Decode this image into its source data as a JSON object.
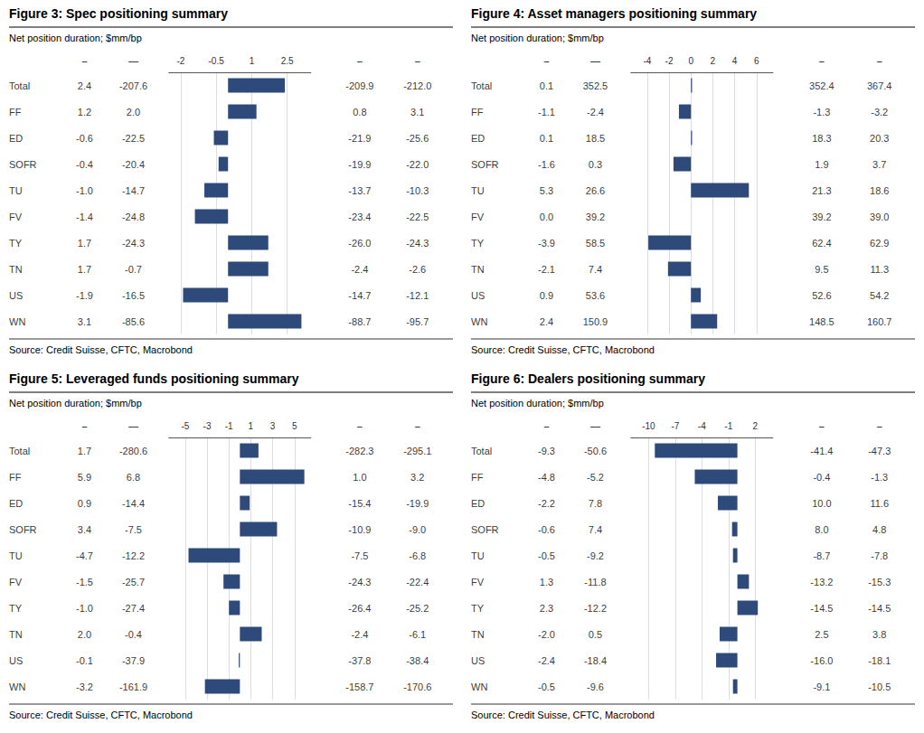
{
  "chart_data": [
    {
      "type": "bar",
      "orientation": "horizontal",
      "grid": true,
      "color": "#2E4A7A",
      "title": "Figure 3: Spec positioning summary",
      "subtitle": "Net position duration; $mm/bp",
      "source": "Source: Credit Suisse, CFTC, Macrobond",
      "categories": [
        "Total",
        "FF",
        "ED",
        "SOFR",
        "TU",
        "FV",
        "TY",
        "TN",
        "US",
        "WN"
      ],
      "values": [
        2.4,
        1.2,
        -0.6,
        -0.4,
        -1.0,
        -1.4,
        1.7,
        1.7,
        -1.9,
        3.1
      ],
      "xlim": [
        -2.5,
        3.5
      ],
      "xticks": [
        -2,
        -0.5,
        1,
        2.5
      ],
      "columns": [
        {
          "header": "–",
          "values": [
            2.4,
            1.2,
            -0.6,
            -0.4,
            -1.0,
            -1.4,
            1.7,
            1.7,
            -1.9,
            3.1
          ],
          "value_labels": [
            "2.4",
            "1.2",
            "-0.6",
            "-0.4",
            "-1.0",
            "-1.4",
            "1.7",
            "1.7",
            "-1.9",
            "3.1"
          ]
        },
        {
          "header": "––",
          "values": [
            -207.6,
            2.0,
            -22.5,
            -20.4,
            -14.7,
            -24.8,
            -24.3,
            -0.7,
            -16.5,
            -85.6
          ],
          "value_labels": [
            "-207.6",
            "2.0",
            "-22.5",
            "-20.4",
            "-14.7",
            "-24.8",
            "-24.3",
            "-0.7",
            "-16.5",
            "-85.6"
          ]
        },
        {
          "header": "–",
          "values": [
            -209.9,
            0.8,
            -21.9,
            -19.9,
            -13.7,
            -23.4,
            -26.0,
            -2.4,
            -14.7,
            -88.7
          ],
          "value_labels": [
            "-209.9",
            "0.8",
            "-21.9",
            "-19.9",
            "-13.7",
            "-23.4",
            "-26.0",
            "-2.4",
            "-14.7",
            "-88.7"
          ]
        },
        {
          "header": "–",
          "values": [
            -212.0,
            3.1,
            -25.6,
            -22.0,
            -10.3,
            -22.5,
            -24.3,
            -2.6,
            -12.1,
            -95.7
          ],
          "value_labels": [
            "-212.0",
            "3.1",
            "-25.6",
            "-22.0",
            "-10.3",
            "-22.5",
            "-24.3",
            "-2.6",
            "-12.1",
            "-95.7"
          ]
        }
      ]
    },
    {
      "type": "bar",
      "orientation": "horizontal",
      "grid": true,
      "color": "#2E4A7A",
      "title": "Figure 4: Asset managers positioning summary",
      "subtitle": "Net position duration; $mm/bp",
      "source": "Source: Credit Suisse, CFTC, Macrobond",
      "categories": [
        "Total",
        "FF",
        "ED",
        "SOFR",
        "TU",
        "FV",
        "TY",
        "TN",
        "US",
        "WN"
      ],
      "values": [
        0.1,
        -1.1,
        0.1,
        -1.6,
        5.3,
        0.0,
        -3.9,
        -2.1,
        0.9,
        2.4
      ],
      "xlim": [
        -5.5,
        7.5
      ],
      "xticks": [
        -4,
        -2,
        0,
        2,
        4,
        6
      ],
      "columns": [
        {
          "header": "–",
          "values": [
            0.1,
            -1.1,
            0.1,
            -1.6,
            5.3,
            0.0,
            -3.9,
            -2.1,
            0.9,
            2.4
          ],
          "value_labels": [
            "0.1",
            "-1.1",
            "0.1",
            "-1.6",
            "5.3",
            "0.0",
            "-3.9",
            "-2.1",
            "0.9",
            "2.4"
          ]
        },
        {
          "header": "––",
          "values": [
            352.5,
            -2.4,
            18.5,
            0.3,
            26.6,
            39.2,
            58.5,
            7.4,
            53.6,
            150.9
          ],
          "value_labels": [
            "352.5",
            "-2.4",
            "18.5",
            "0.3",
            "26.6",
            "39.2",
            "58.5",
            "7.4",
            "53.6",
            "150.9"
          ]
        },
        {
          "header": "–",
          "values": [
            352.4,
            -1.3,
            18.3,
            1.9,
            21.3,
            39.2,
            62.4,
            9.5,
            52.6,
            148.5
          ],
          "value_labels": [
            "352.4",
            "-1.3",
            "18.3",
            "1.9",
            "21.3",
            "39.2",
            "62.4",
            "9.5",
            "52.6",
            "148.5"
          ]
        },
        {
          "header": "–",
          "values": [
            367.4,
            -3.2,
            20.3,
            3.7,
            18.6,
            39.0,
            62.9,
            11.3,
            54.2,
            160.7
          ],
          "value_labels": [
            "367.4",
            "-3.2",
            "20.3",
            "3.7",
            "18.6",
            "39.0",
            "62.9",
            "11.3",
            "54.2",
            "160.7"
          ]
        }
      ]
    },
    {
      "type": "bar",
      "orientation": "horizontal",
      "grid": true,
      "color": "#2E4A7A",
      "title": "Figure 5: Leveraged funds positioning summary",
      "subtitle": "Net position duration; $mm/bp",
      "source": "Source: Credit Suisse, CFTC, Macrobond",
      "categories": [
        "Total",
        "FF",
        "ED",
        "SOFR",
        "TU",
        "FV",
        "TY",
        "TN",
        "US",
        "WN"
      ],
      "values": [
        1.7,
        5.9,
        0.9,
        3.4,
        -4.7,
        -1.5,
        -1.0,
        2.0,
        -0.1,
        -3.2
      ],
      "xlim": [
        -6.5,
        6.5
      ],
      "xticks": [
        -5,
        -3,
        -1,
        1,
        3,
        5
      ],
      "columns": [
        {
          "header": "–",
          "values": [
            1.7,
            5.9,
            0.9,
            3.4,
            -4.7,
            -1.5,
            -1.0,
            2.0,
            -0.1,
            -3.2
          ],
          "value_labels": [
            "1.7",
            "5.9",
            "0.9",
            "3.4",
            "-4.7",
            "-1.5",
            "-1.0",
            "2.0",
            "-0.1",
            "-3.2"
          ]
        },
        {
          "header": "––",
          "values": [
            -280.6,
            6.8,
            -14.4,
            -7.5,
            -12.2,
            -25.7,
            -27.4,
            -0.4,
            -37.9,
            -161.9
          ],
          "value_labels": [
            "-280.6",
            "6.8",
            "-14.4",
            "-7.5",
            "-12.2",
            "-25.7",
            "-27.4",
            "-0.4",
            "-37.9",
            "-161.9"
          ]
        },
        {
          "header": "–",
          "values": [
            -282.3,
            1.0,
            -15.4,
            -10.9,
            -7.5,
            -24.3,
            -26.4,
            -2.4,
            -37.8,
            -158.7
          ],
          "value_labels": [
            "-282.3",
            "1.0",
            "-15.4",
            "-10.9",
            "-7.5",
            "-24.3",
            "-26.4",
            "-2.4",
            "-37.8",
            "-158.7"
          ]
        },
        {
          "header": "–",
          "values": [
            -295.1,
            3.2,
            -19.9,
            -9.0,
            -6.8,
            -22.4,
            -25.2,
            -6.1,
            -38.4,
            -170.6
          ],
          "value_labels": [
            "-295.1",
            "3.2",
            "-19.9",
            "-9.0",
            "-6.8",
            "-22.4",
            "-25.2",
            "-6.1",
            "-38.4",
            "-170.6"
          ]
        }
      ]
    },
    {
      "type": "bar",
      "orientation": "horizontal",
      "grid": true,
      "color": "#2E4A7A",
      "title": "Figure 6: Dealers positioning summary",
      "subtitle": "Net position duration; $mm/bp",
      "source": "Source: Credit Suisse, CFTC, Macrobond",
      "categories": [
        "Total",
        "FF",
        "ED",
        "SOFR",
        "TU",
        "FV",
        "TY",
        "TN",
        "US",
        "WN"
      ],
      "values": [
        -9.3,
        -4.8,
        -2.2,
        -0.6,
        -0.5,
        1.3,
        2.3,
        -2.0,
        -2.4,
        -0.5
      ],
      "xlim": [
        -12.0,
        4.0
      ],
      "xticks": [
        -10,
        -7,
        -4,
        -1,
        2
      ],
      "columns": [
        {
          "header": "–",
          "values": [
            -9.3,
            -4.8,
            -2.2,
            -0.6,
            -0.5,
            1.3,
            2.3,
            -2.0,
            -2.4,
            -0.5
          ],
          "value_labels": [
            "-9.3",
            "-4.8",
            "-2.2",
            "-0.6",
            "-0.5",
            "1.3",
            "2.3",
            "-2.0",
            "-2.4",
            "-0.5"
          ]
        },
        {
          "header": "––",
          "values": [
            -50.6,
            -5.2,
            7.8,
            7.4,
            -9.2,
            -11.8,
            -12.2,
            0.5,
            -18.4,
            -9.6
          ],
          "value_labels": [
            "-50.6",
            "-5.2",
            "7.8",
            "7.4",
            "-9.2",
            "-11.8",
            "-12.2",
            "0.5",
            "-18.4",
            "-9.6"
          ]
        },
        {
          "header": "–",
          "values": [
            -41.4,
            -0.4,
            10.0,
            8.0,
            -8.7,
            -13.2,
            -14.5,
            2.5,
            -16.0,
            -9.1
          ],
          "value_labels": [
            "-41.4",
            "-0.4",
            "10.0",
            "8.0",
            "-8.7",
            "-13.2",
            "-14.5",
            "2.5",
            "-16.0",
            "-9.1"
          ]
        },
        {
          "header": "–",
          "values": [
            -47.3,
            -1.3,
            11.6,
            4.8,
            -7.8,
            -15.3,
            -14.5,
            3.8,
            -18.1,
            -10.5
          ],
          "value_labels": [
            "-47.3",
            "-1.3",
            "11.6",
            "4.8",
            "-7.8",
            "-15.3",
            "-14.5",
            "3.8",
            "-18.1",
            "-10.5"
          ]
        }
      ]
    }
  ]
}
